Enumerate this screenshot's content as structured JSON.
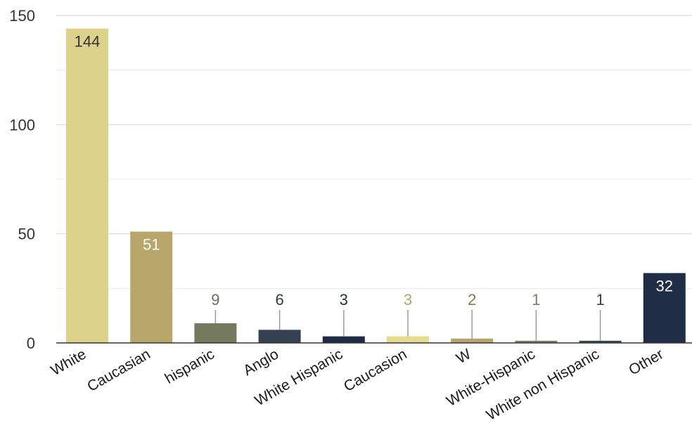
{
  "chart_data": {
    "type": "bar",
    "title": "",
    "xlabel": "",
    "ylabel": "",
    "ylim": [
      0,
      150
    ],
    "yticks": [
      0,
      50,
      100,
      150
    ],
    "grid": true,
    "categories": [
      "White",
      "Caucasian",
      "hispanic",
      "Anglo",
      "White Hispanic",
      "Caucasion",
      "W",
      "White-Hispanic",
      "White non Hispanic",
      "Other"
    ],
    "values": [
      144,
      51,
      9,
      6,
      3,
      3,
      2,
      1,
      1,
      32
    ],
    "value_labels": [
      "144",
      "51",
      "9",
      "6",
      "3",
      "3",
      "2",
      "1",
      "1",
      "32"
    ],
    "colors": [
      "#ddd28b",
      "#b9a66a",
      "#757a5e",
      "#354150",
      "#1d2b45",
      "#e5da8e",
      "#b8a46a",
      "#7a7f63",
      "#384555",
      "#1f2e46"
    ],
    "label_colors": [
      "#333333",
      "#ffffff",
      "#6c7158",
      "#2f3b4a",
      "#1f2e46",
      "#b3a56a",
      "#8a7a4a",
      "#7a7f63",
      "#384555",
      "#ffffff"
    ]
  }
}
